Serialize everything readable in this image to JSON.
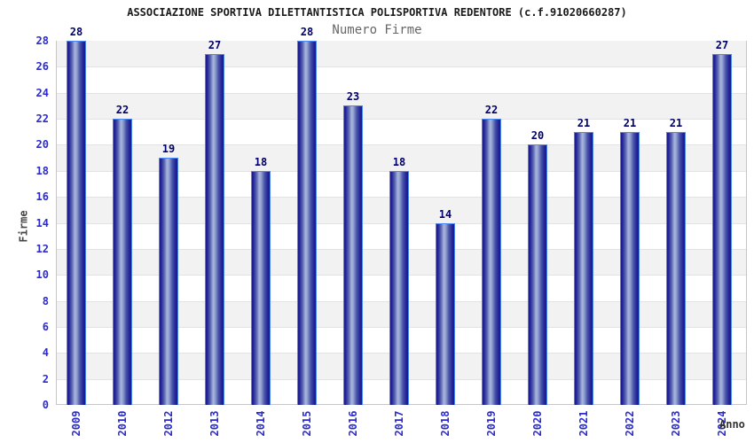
{
  "chart_data": {
    "type": "bar",
    "title": "ASSOCIAZIONE SPORTIVA DILETTANTISTICA POLISPORTIVA REDENTORE (c.f.91020660287)",
    "subtitle": "Numero Firme",
    "xlabel": "Anno",
    "ylabel": "Firme",
    "categories": [
      "2009",
      "2010",
      "2012",
      "2013",
      "2014",
      "2015",
      "2016",
      "2017",
      "2018",
      "2019",
      "2020",
      "2021",
      "2022",
      "2023",
      "2024"
    ],
    "values": [
      28,
      22,
      19,
      27,
      18,
      28,
      23,
      18,
      14,
      22,
      20,
      21,
      21,
      21,
      27
    ],
    "ylim": [
      0,
      28
    ],
    "ytick_step": 2,
    "grid": "horizontal-bands",
    "legend_position": "none",
    "colors": {
      "bar_edge": "#4a86ef",
      "bar_dark": "#1a1a84",
      "bar_mid": "#5b68b2",
      "bar_light": "#aab6de",
      "band_gray": "#f2f2f2",
      "band_white": "#ffffff",
      "gridline": "#e2e2e2",
      "plot_border": "#c6c6c6",
      "tick_text": "#2a2ad0",
      "value_text": "#00006e",
      "title_text": "#1a1a1a",
      "subtitle_text": "#666666",
      "axis_title_text": "#3d3d3d"
    }
  }
}
